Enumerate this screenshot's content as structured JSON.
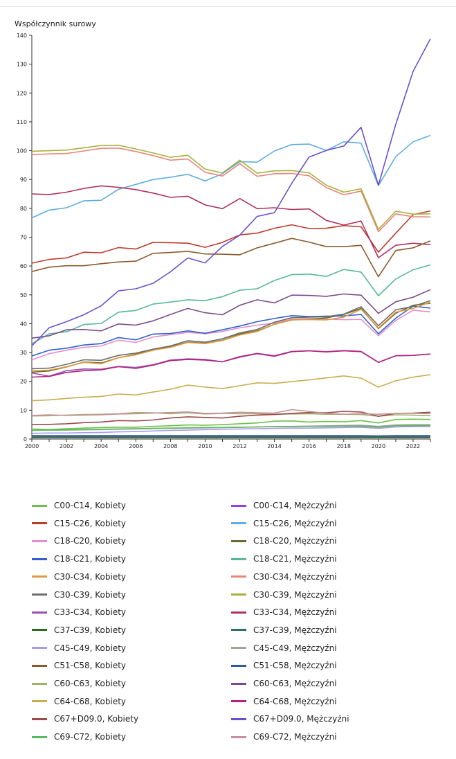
{
  "chart_data": {
    "type": "line",
    "ylabel": "Współczynnik surowy",
    "ylim": [
      0,
      140
    ],
    "yticks": [
      0,
      10,
      20,
      30,
      40,
      50,
      60,
      70,
      80,
      90,
      100,
      110,
      120,
      130,
      140
    ],
    "xlim": [
      2000,
      2023
    ],
    "xtick_labels": [
      "2000",
      "2002",
      "2004",
      "2006",
      "2008",
      "2010",
      "2012",
      "2014",
      "2016",
      "2018",
      "2020",
      "2022"
    ],
    "x": [
      2000,
      2001,
      2002,
      2003,
      2004,
      2005,
      2006,
      2007,
      2008,
      2009,
      2010,
      2011,
      2012,
      2013,
      2014,
      2015,
      2016,
      2017,
      2018,
      2019,
      2020,
      2021,
      2022,
      2023
    ],
    "series": [
      {
        "name": "C00-C14, Kobiety",
        "color": "#6cc04a",
        "values": [
          3.5,
          3.3,
          3.6,
          3.8,
          4.0,
          4.1,
          4.1,
          4.4,
          4.6,
          4.9,
          4.8,
          5.0,
          5.3,
          5.6,
          6.2,
          6.3,
          5.9,
          6.1,
          6.0,
          6.4,
          5.6,
          6.8,
          6.9,
          6.8
        ]
      },
      {
        "name": "C00-C14, Mężczyźni",
        "color": "#8e44e0",
        "values": [
          0.8,
          0.9,
          0.8,
          0.8,
          0.8,
          0.8,
          0.8,
          0.8,
          0.8,
          0.8,
          0.8,
          0.8,
          0.8,
          0.8,
          0.8,
          0.8,
          0.8,
          0.8,
          0.8,
          0.8,
          0.7,
          0.8,
          0.8,
          0.8
        ]
      },
      {
        "name": "C15-C26, Kobiety",
        "color": "#c0392b",
        "values": [
          61,
          62.3,
          62.8,
          64.8,
          64.6,
          66.4,
          65.9,
          68.2,
          68.1,
          67.9,
          66.5,
          68.2,
          70.8,
          71.4,
          73.1,
          74.3,
          73.0,
          73.1,
          74.0,
          73.6,
          64.8,
          71.4,
          77.8,
          79.1
        ]
      },
      {
        "name": "C15-C26, Mężczyźni",
        "color": "#5dade2",
        "values": [
          76.7,
          79.4,
          80.2,
          82.6,
          82.8,
          86.6,
          88.3,
          90.0,
          90.8,
          91.8,
          89.5,
          92.0,
          96.2,
          96.0,
          99.9,
          102.1,
          102.3,
          100.1,
          103.1,
          102.6,
          87.9,
          97.9,
          103.1,
          105.3
        ]
      },
      {
        "name": "C18-C20, Kobiety",
        "color": "#e58fc8",
        "values": [
          27.5,
          29.6,
          30.8,
          31.8,
          32.3,
          34.3,
          33.5,
          35.4,
          36.2,
          37.0,
          36.5,
          37.3,
          38.6,
          39.5,
          40.2,
          41.6,
          41.8,
          41.6,
          41.4,
          41.5,
          35.8,
          41.1,
          44.7,
          44.1
        ]
      },
      {
        "name": "C18-C20, Mężczyźni",
        "color": "#6b6b2e",
        "values": [
          23.2,
          23.6,
          25.0,
          26.7,
          26.4,
          28.2,
          29.4,
          31.0,
          32.0,
          33.6,
          33.2,
          34.3,
          36.4,
          37.5,
          39.8,
          41.3,
          41.5,
          42.0,
          43.2,
          45.3,
          38.3,
          43.6,
          46.4,
          47.1
        ]
      },
      {
        "name": "C18-C21, Kobiety",
        "color": "#2f5fcf",
        "values": [
          28.8,
          30.8,
          31.5,
          32.6,
          33.1,
          35.2,
          34.4,
          36.4,
          36.6,
          37.5,
          36.7,
          37.9,
          39.2,
          40.7,
          41.8,
          42.8,
          42.5,
          42.6,
          42.7,
          43.2,
          36.5,
          41.9,
          46.1,
          45.4
        ]
      },
      {
        "name": "C18-C21, Mężczyźni",
        "color": "#55b89b",
        "values": [
          33.0,
          36.5,
          37.2,
          39.7,
          40.1,
          44.0,
          44.6,
          46.8,
          47.5,
          48.3,
          48.0,
          49.4,
          51.6,
          52.1,
          55.0,
          57.0,
          57.2,
          56.4,
          58.8,
          57.9,
          49.7,
          55.5,
          58.7,
          60.4
        ]
      },
      {
        "name": "C30-C34, Kobiety",
        "color": "#e09a3c",
        "values": [
          23.7,
          23.9,
          25.1,
          26.6,
          26.1,
          28.2,
          29.2,
          30.8,
          31.8,
          33.5,
          33.1,
          34.2,
          36.1,
          37.3,
          39.8,
          41.4,
          41.4,
          41.3,
          42.3,
          45.0,
          38.5,
          44.0,
          45.3,
          47.5
        ]
      },
      {
        "name": "C30-C34, Mężczyźni",
        "color": "#e8867a",
        "values": [
          98.6,
          98.9,
          99.0,
          99.9,
          100.8,
          100.9,
          99.7,
          98.3,
          96.7,
          97.1,
          92.5,
          91.2,
          95.5,
          91.1,
          92.0,
          92.1,
          91.3,
          87.2,
          84.7,
          86.0,
          71.9,
          78.1,
          77.1,
          77.0
        ]
      },
      {
        "name": "C30-C39, Kobiety",
        "color": "#6d6d6d",
        "values": [
          24.4,
          24.6,
          25.9,
          27.5,
          27.3,
          29.0,
          29.8,
          31.2,
          32.3,
          34.1,
          33.6,
          34.8,
          36.8,
          38.0,
          40.5,
          42.1,
          42.3,
          42.4,
          43.3,
          45.9,
          39.3,
          44.8,
          46.0,
          48.0
        ]
      },
      {
        "name": "C30-C39, Mężczyźni",
        "color": "#a8b03c",
        "values": [
          99.8,
          100.0,
          100.2,
          101.0,
          101.8,
          101.9,
          100.6,
          99.2,
          97.7,
          98.4,
          93.6,
          92.3,
          96.7,
          92.2,
          93.0,
          93.1,
          92.3,
          88.0,
          85.6,
          86.8,
          72.7,
          79.0,
          78.0,
          78.1
        ]
      },
      {
        "name": "C33-C34, Kobiety",
        "color": "#9b4fb0",
        "values": [
          22.9,
          21.8,
          23.7,
          24.3,
          24.2,
          25.2,
          24.8,
          25.8,
          27.4,
          27.8,
          27.6,
          26.8,
          28.6,
          29.7,
          28.9,
          30.4,
          30.6,
          30.3,
          30.7,
          30.4,
          26.6,
          28.9,
          29.0,
          29.5
        ]
      },
      {
        "name": "C33-C34, Mężczyźni",
        "color": "#b0305e",
        "values": [
          85.0,
          84.8,
          85.6,
          86.9,
          87.8,
          87.3,
          86.5,
          85.3,
          83.8,
          84.2,
          81.2,
          79.9,
          83.4,
          79.9,
          80.2,
          79.6,
          79.8,
          75.8,
          74.2,
          75.6,
          62.9,
          67.2,
          67.9,
          67.4
        ]
      },
      {
        "name": "C37-C39, Kobiety",
        "color": "#2e6a1f",
        "values": [
          0.5,
          0.5,
          0.5,
          0.5,
          0.5,
          0.5,
          0.5,
          0.5,
          0.5,
          0.5,
          0.5,
          0.5,
          0.5,
          0.5,
          0.5,
          0.5,
          0.5,
          0.5,
          0.5,
          0.5,
          0.5,
          0.5,
          0.5,
          0.5
        ]
      },
      {
        "name": "C37-C39, Mężczyźni",
        "color": "#2e6e6a",
        "values": [
          1.0,
          1.0,
          1.0,
          1.0,
          1.0,
          1.0,
          1.0,
          1.0,
          1.0,
          1.0,
          1.0,
          1.0,
          1.0,
          1.0,
          1.0,
          1.0,
          1.0,
          1.0,
          1.0,
          1.0,
          0.9,
          1.0,
          1.0,
          1.0
        ]
      },
      {
        "name": "C45-C49, Kobiety",
        "color": "#a89af0",
        "values": [
          2.0,
          2.1,
          2.1,
          2.2,
          2.3,
          2.5,
          2.6,
          2.8,
          3.0,
          3.1,
          3.3,
          3.4,
          3.5,
          3.6,
          3.7,
          3.8,
          3.8,
          3.9,
          4.0,
          4.1,
          3.7,
          4.2,
          4.3,
          4.3
        ]
      },
      {
        "name": "C45-C49, Mężczyźni",
        "color": "#a3a39a",
        "values": [
          3.0,
          3.1,
          3.1,
          3.2,
          3.3,
          3.4,
          3.5,
          3.6,
          3.7,
          3.8,
          3.9,
          4.0,
          4.1,
          4.2,
          4.3,
          4.4,
          4.5,
          4.6,
          4.7,
          4.8,
          4.4,
          4.9,
          5.0,
          5.0
        ]
      },
      {
        "name": "C51-C58, Kobiety",
        "color": "#8a5a2b",
        "values": [
          58.1,
          59.6,
          60.1,
          60.1,
          60.8,
          61.4,
          61.7,
          64.4,
          64.7,
          65.1,
          64.2,
          64.1,
          63.9,
          66.3,
          67.9,
          69.6,
          68.3,
          66.7,
          66.7,
          67.2,
          56.3,
          65.4,
          66.3,
          68.7
        ]
      },
      {
        "name": "C51-C58, Mężczyźni",
        "color": "#2f5a9e",
        "values": [
          1.2,
          1.2,
          1.2,
          1.2,
          1.2,
          1.2,
          1.2,
          1.2,
          1.2,
          1.2,
          1.2,
          1.2,
          1.2,
          1.2,
          1.2,
          1.2,
          1.2,
          1.2,
          1.2,
          1.2,
          1.1,
          1.2,
          1.2,
          1.2
        ]
      },
      {
        "name": "C60-C63, Kobiety",
        "color": "#9fb26a",
        "values": [
          8.0,
          8.1,
          8.3,
          8.5,
          8.6,
          8.8,
          9.2,
          9.1,
          8.8,
          9.1,
          8.7,
          8.9,
          8.8,
          8.8,
          8.6,
          8.7,
          8.8,
          8.6,
          8.6,
          8.5,
          7.9,
          8.4,
          8.3,
          8.1
        ]
      },
      {
        "name": "C60-C63, Mężczyźni",
        "color": "#7b4a8c",
        "values": [
          35.0,
          35.8,
          37.9,
          38.0,
          37.5,
          39.9,
          39.5,
          41.0,
          43.2,
          45.3,
          43.8,
          43.1,
          46.4,
          48.3,
          47.2,
          49.9,
          49.8,
          49.5,
          50.3,
          49.9,
          43.6,
          47.6,
          49.2,
          51.8
        ]
      },
      {
        "name": "C64-C68, Kobiety",
        "color": "#c8ad4e",
        "values": [
          13.3,
          13.6,
          14.1,
          14.5,
          14.8,
          15.6,
          15.3,
          16.3,
          17.3,
          18.7,
          18.0,
          17.5,
          18.5,
          19.5,
          19.3,
          19.9,
          20.5,
          21.2,
          21.9,
          21.1,
          18.0,
          20.2,
          21.5,
          22.3
        ]
      },
      {
        "name": "C64-C68, Mężczyźni",
        "color": "#b0237e",
        "values": [
          21.5,
          21.7,
          23.1,
          23.7,
          24.0,
          25.1,
          24.5,
          25.6,
          27.2,
          27.6,
          27.4,
          26.8,
          28.4,
          29.6,
          28.7,
          30.3,
          30.6,
          30.2,
          30.6,
          30.3,
          26.6,
          28.9,
          29.0,
          29.5
        ]
      },
      {
        "name": "C67+D09.0, Kobiety",
        "color": "#9b4a4a",
        "values": [
          5.0,
          5.1,
          5.3,
          5.7,
          5.9,
          6.4,
          6.3,
          6.6,
          7.3,
          7.7,
          7.5,
          7.3,
          7.9,
          8.3,
          8.5,
          8.9,
          9.2,
          9.1,
          9.6,
          9.4,
          7.9,
          8.9,
          9.0,
          9.3
        ]
      },
      {
        "name": "C67+D09.0, Mężczyźni",
        "color": "#6b4fd0",
        "values": [
          32.3,
          38.6,
          40.7,
          43.1,
          46.2,
          51.4,
          52.1,
          54.0,
          58.0,
          62.8,
          61.1,
          66.8,
          70.7,
          77.2,
          78.5,
          88.7,
          97.8,
          100.1,
          101.6,
          108.1,
          88.0,
          109.1,
          127.5,
          138.8
        ]
      },
      {
        "name": "C69-C72, Kobiety",
        "color": "#5cb85c",
        "values": [
          3.0,
          3.1,
          3.2,
          3.3,
          3.4,
          3.5,
          3.6,
          3.7,
          3.8,
          3.9,
          4.0,
          4.0,
          4.1,
          4.2,
          4.3,
          4.3,
          4.4,
          4.4,
          4.5,
          4.5,
          4.1,
          4.6,
          4.6,
          4.7
        ]
      },
      {
        "name": "C69-C72, Mężczyźni",
        "color": "#c98f9f",
        "values": [
          8.2,
          8.4,
          8.2,
          8.3,
          8.4,
          8.7,
          8.8,
          9.0,
          9.2,
          9.4,
          8.9,
          9.0,
          9.3,
          9.1,
          9.0,
          10.2,
          9.6,
          8.9,
          8.6,
          8.8,
          8.6,
          8.9,
          8.9,
          8.8
        ]
      }
    ]
  }
}
